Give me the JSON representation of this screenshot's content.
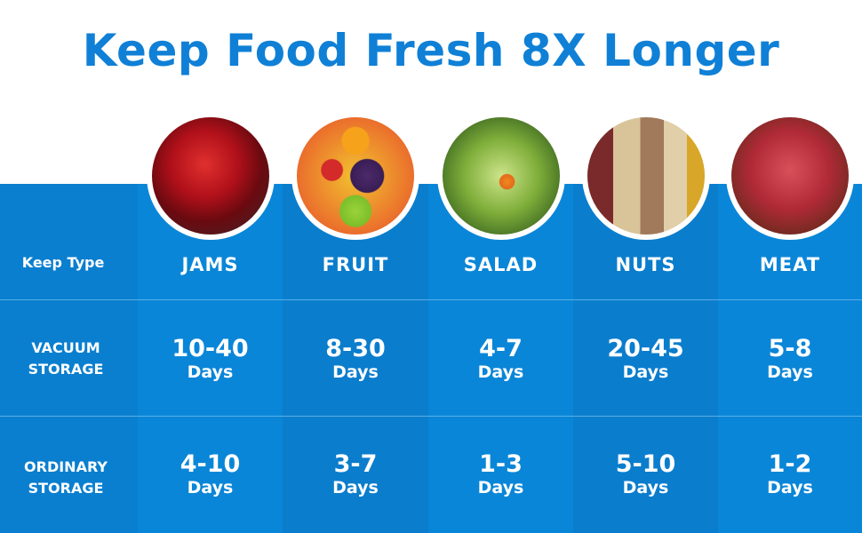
{
  "title": "Keep Food Fresh 8X Longer",
  "row_labels": {
    "keep_type": "Keep Type",
    "vacuum": [
      "VACUUM",
      "STORAGE"
    ],
    "ordinary": [
      "ORDINARY",
      "STORAGE"
    ]
  },
  "colors": {
    "title": "#0f80d6",
    "band": "#0a82d4"
  },
  "columns": [
    {
      "name": "JAMS",
      "image": "jam-jar",
      "vacuum": "10-40",
      "ordinary": "4-10",
      "unit": "Days"
    },
    {
      "name": "FRUIT",
      "image": "mixed-fruit",
      "vacuum": "8-30",
      "ordinary": "3-7",
      "unit": "Days"
    },
    {
      "name": "SALAD",
      "image": "green-salad",
      "vacuum": "4-7",
      "ordinary": "1-3",
      "unit": "Days"
    },
    {
      "name": "NUTS",
      "image": "beans-nuts",
      "vacuum": "20-45",
      "ordinary": "5-10",
      "unit": "Days"
    },
    {
      "name": "MEAT",
      "image": "raw-steak",
      "vacuum": "5-8",
      "ordinary": "1-2",
      "unit": "Days"
    }
  ]
}
